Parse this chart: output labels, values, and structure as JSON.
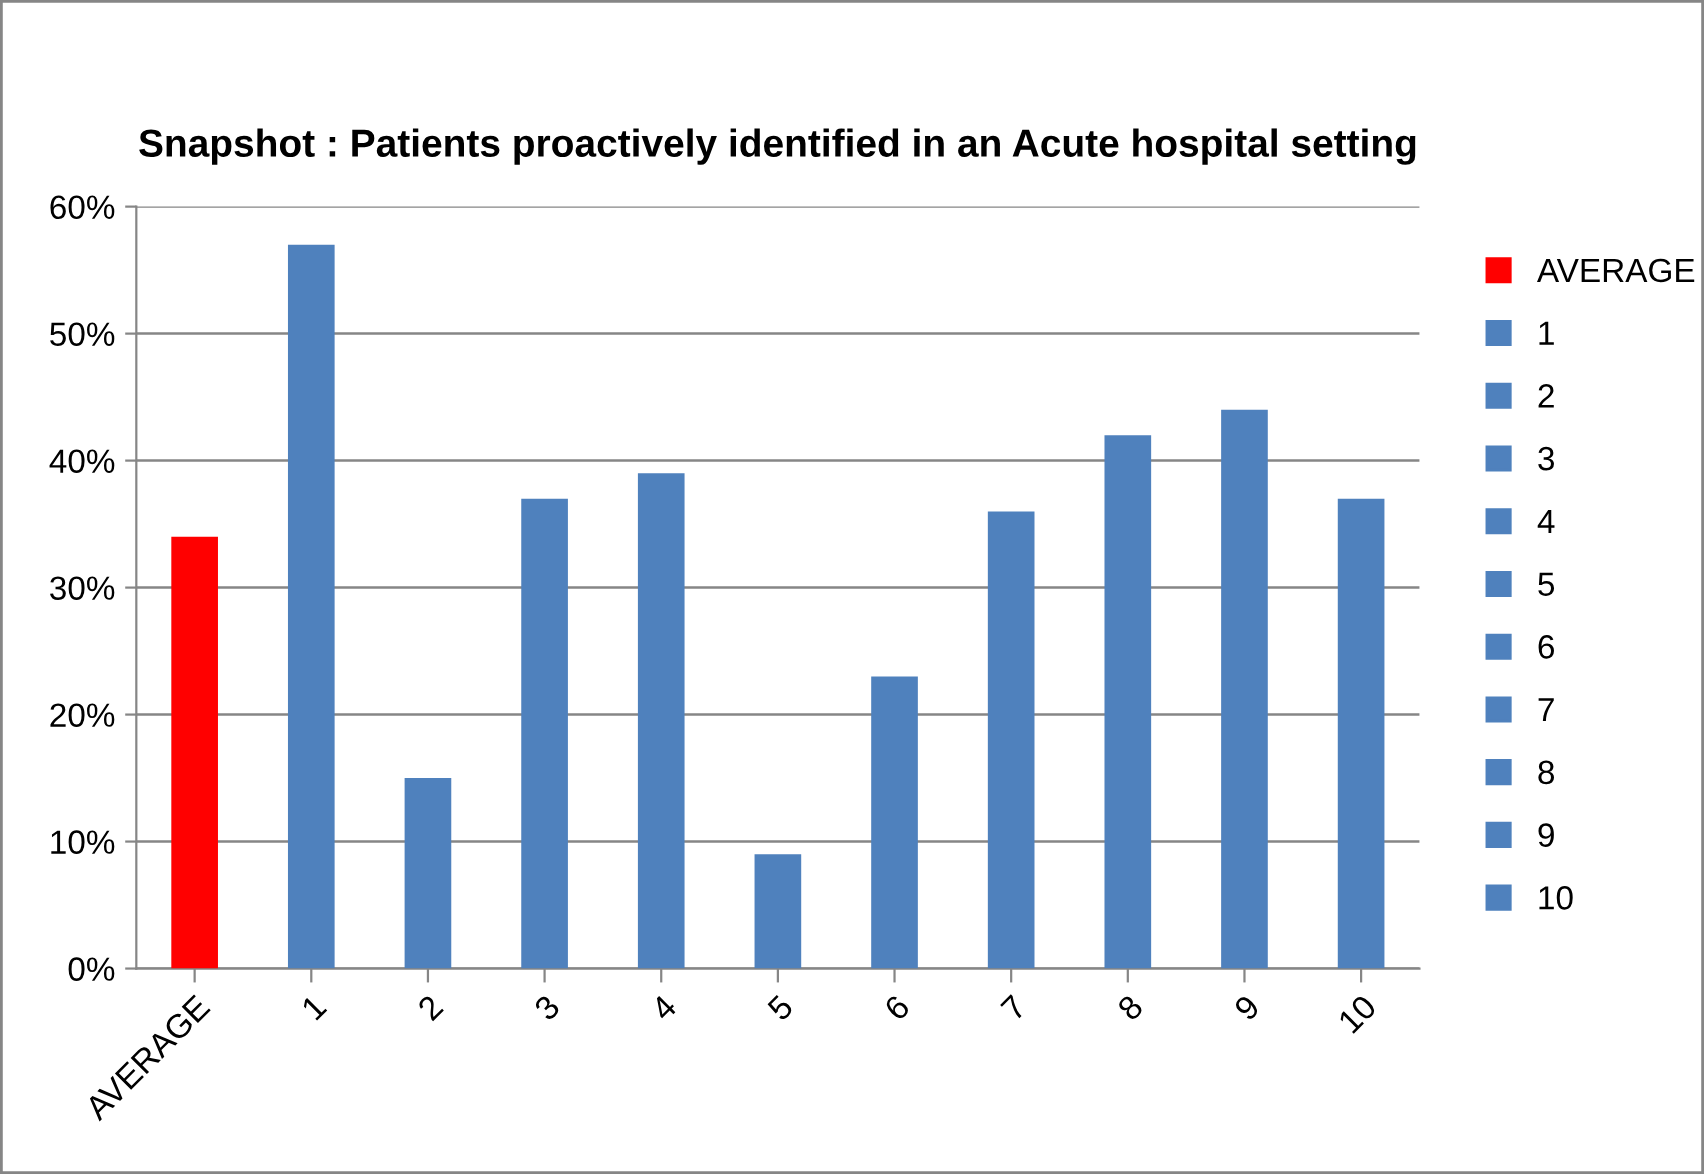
{
  "chart_data": {
    "type": "bar",
    "title": "Snapshot : Patients proactively identified in an Acute hospital setting",
    "categories": [
      "AVERAGE",
      "1",
      "2",
      "3",
      "4",
      "5",
      "6",
      "7",
      "8",
      "9",
      "10"
    ],
    "series": [
      {
        "name": "AVERAGE",
        "color": "#ff0000",
        "values": [
          34,
          null,
          null,
          null,
          null,
          null,
          null,
          null,
          null,
          null,
          null
        ]
      },
      {
        "name": "1",
        "color": "#4f81bd",
        "values": [
          null,
          57,
          null,
          null,
          null,
          null,
          null,
          null,
          null,
          null,
          null
        ]
      },
      {
        "name": "2",
        "color": "#4f81bd",
        "values": [
          null,
          null,
          15,
          null,
          null,
          null,
          null,
          null,
          null,
          null,
          null
        ]
      },
      {
        "name": "3",
        "color": "#4f81bd",
        "values": [
          null,
          null,
          null,
          37,
          null,
          null,
          null,
          null,
          null,
          null,
          null
        ]
      },
      {
        "name": "4",
        "color": "#4f81bd",
        "values": [
          null,
          null,
          null,
          null,
          39,
          null,
          null,
          null,
          null,
          null,
          null
        ]
      },
      {
        "name": "5",
        "color": "#4f81bd",
        "values": [
          null,
          null,
          null,
          null,
          null,
          9,
          null,
          null,
          null,
          null,
          null
        ]
      },
      {
        "name": "6",
        "color": "#4f81bd",
        "values": [
          null,
          null,
          null,
          null,
          null,
          null,
          23,
          null,
          null,
          null,
          null
        ]
      },
      {
        "name": "7",
        "color": "#4f81bd",
        "values": [
          null,
          null,
          null,
          null,
          null,
          null,
          null,
          36,
          null,
          null,
          null
        ]
      },
      {
        "name": "8",
        "color": "#4f81bd",
        "values": [
          null,
          null,
          null,
          null,
          null,
          null,
          null,
          null,
          42,
          null,
          null
        ]
      },
      {
        "name": "9",
        "color": "#4f81bd",
        "values": [
          null,
          null,
          null,
          null,
          null,
          null,
          null,
          null,
          null,
          44,
          null
        ]
      },
      {
        "name": "10",
        "color": "#4f81bd",
        "values": [
          null,
          null,
          null,
          null,
          null,
          null,
          null,
          null,
          null,
          null,
          37
        ]
      }
    ],
    "ylim": [
      0,
      60
    ],
    "yticks": [
      {
        "value": 0,
        "label": "0%"
      },
      {
        "value": 10,
        "label": "10%"
      },
      {
        "value": 20,
        "label": "20%"
      },
      {
        "value": 30,
        "label": "30%"
      },
      {
        "value": 40,
        "label": "40%"
      },
      {
        "value": 50,
        "label": "50%"
      },
      {
        "value": 60,
        "label": "60%"
      }
    ],
    "grid": "y",
    "legend": "right"
  }
}
